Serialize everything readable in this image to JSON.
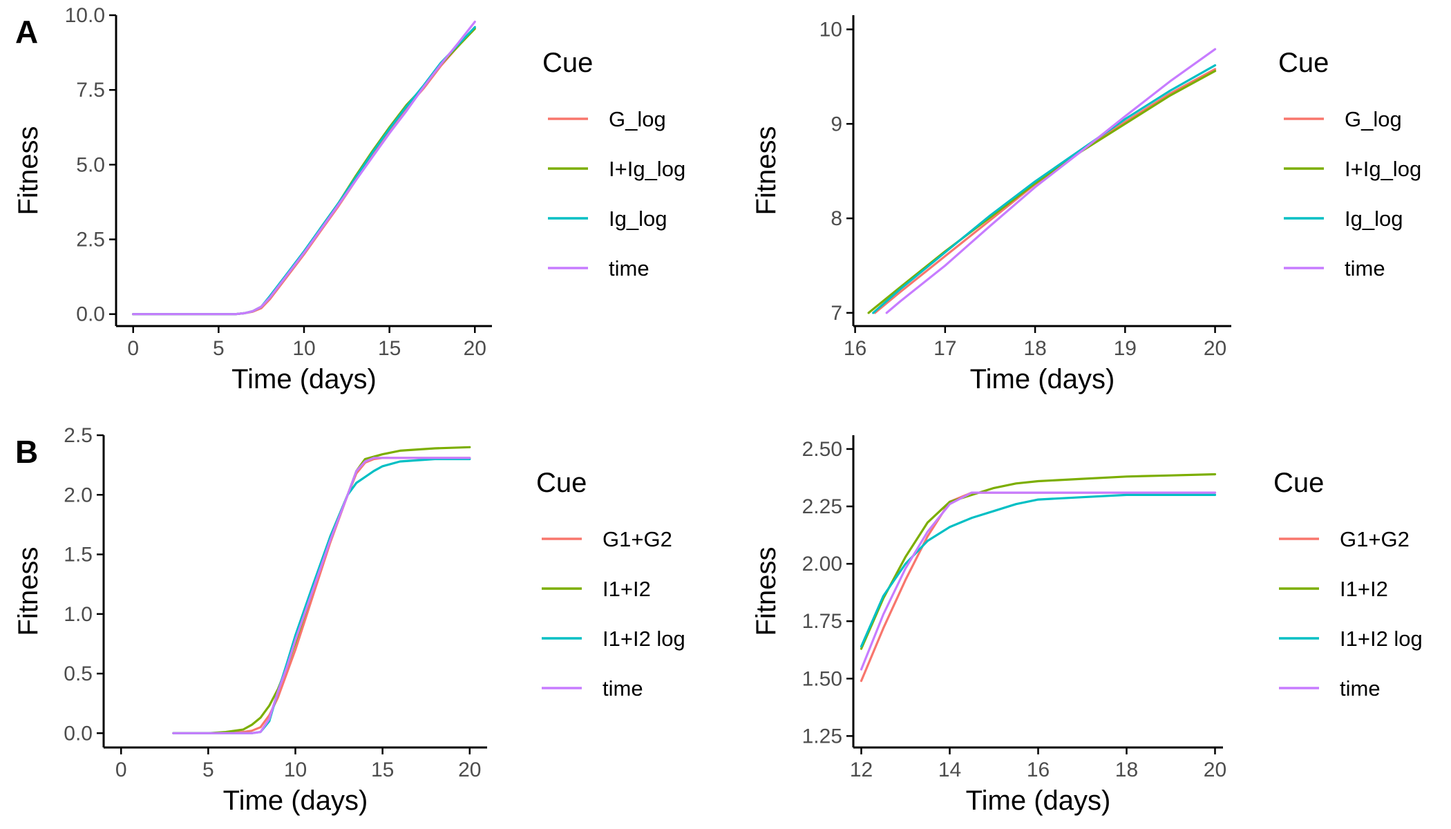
{
  "panel_labels": [
    "A",
    "B"
  ],
  "colors": {
    "G_log": "#F8766D",
    "I+Ig_log": "#7CAE00",
    "Ig_log": "#00BFC4",
    "time": "#C77CFF",
    "G1+G2": "#F8766D",
    "I1+I2": "#7CAE00",
    "I1+I2 log": "#00BFC4"
  },
  "chart_data": [
    {
      "id": "A-left",
      "type": "line",
      "xlabel": "Time (days)",
      "ylabel": "Fitness",
      "xlim": [
        -1,
        21
      ],
      "ylim": [
        -0.4,
        10.0
      ],
      "xticks": [
        0,
        5,
        10,
        15,
        20
      ],
      "xtick_labels": [
        "0",
        "5",
        "10",
        "15",
        "20"
      ],
      "yticks": [
        0,
        2.5,
        5,
        7.5,
        10
      ],
      "ytick_labels": [
        "0.0",
        "2.5",
        "5.0",
        "7.5",
        "10.0"
      ],
      "grid": false,
      "legend": {
        "title": "Cue",
        "position": "right",
        "entries": [
          "G_log",
          "I+Ig_log",
          "Ig_log",
          "time"
        ]
      },
      "series": [
        {
          "name": "G_log",
          "color": "#F8766D",
          "x": [
            0,
            2,
            4,
            6,
            6.5,
            7,
            7.5,
            8,
            9,
            10,
            11,
            12,
            13,
            14,
            15,
            16,
            17,
            18,
            19,
            20
          ],
          "y": [
            0,
            0,
            0,
            0,
            0.03,
            0.08,
            0.2,
            0.5,
            1.25,
            2.0,
            2.8,
            3.6,
            4.45,
            5.3,
            6.1,
            6.9,
            7.55,
            8.3,
            8.95,
            9.6
          ]
        },
        {
          "name": "I+Ig_log",
          "color": "#7CAE00",
          "x": [
            0,
            2,
            4,
            6,
            6.5,
            7,
            7.5,
            8,
            9,
            10,
            11,
            12,
            13,
            14,
            15,
            16,
            17,
            18,
            19,
            20
          ],
          "y": [
            0,
            0,
            0,
            0,
            0.03,
            0.1,
            0.25,
            0.55,
            1.3,
            2.05,
            2.9,
            3.7,
            4.6,
            5.45,
            6.25,
            7.0,
            7.6,
            8.35,
            8.95,
            9.55
          ]
        },
        {
          "name": "Ig_log",
          "color": "#00BFC4",
          "x": [
            0,
            2,
            4,
            6,
            6.5,
            7,
            7.5,
            8,
            9,
            10,
            11,
            12,
            13,
            14,
            15,
            16,
            17,
            18,
            19,
            20
          ],
          "y": [
            0,
            0,
            0,
            0,
            0.03,
            0.1,
            0.25,
            0.6,
            1.35,
            2.1,
            2.9,
            3.7,
            4.55,
            5.4,
            6.2,
            6.95,
            7.65,
            8.4,
            9.0,
            9.6
          ]
        },
        {
          "name": "time",
          "color": "#C77CFF",
          "x": [
            0,
            2,
            4,
            6,
            6.5,
            7,
            7.5,
            8,
            9,
            10,
            11,
            12,
            13,
            14,
            15,
            16,
            17,
            18,
            19,
            20
          ],
          "y": [
            0,
            0,
            0,
            0,
            0.03,
            0.1,
            0.25,
            0.55,
            1.3,
            2.05,
            2.85,
            3.65,
            4.45,
            5.25,
            6.05,
            6.8,
            7.6,
            8.35,
            9.05,
            9.78
          ]
        }
      ]
    },
    {
      "id": "A-right",
      "type": "line",
      "xlabel": "Time (days)",
      "ylabel": "Fitness",
      "xlim": [
        15.98,
        20.18
      ],
      "ylim": [
        6.86,
        10.15
      ],
      "xticks": [
        16,
        17,
        18,
        19,
        20
      ],
      "xtick_labels": [
        "16",
        "17",
        "18",
        "19",
        "20"
      ],
      "yticks": [
        7,
        8,
        9,
        10
      ],
      "ytick_labels": [
        "7",
        "8",
        "9",
        "10"
      ],
      "grid": false,
      "legend": {
        "title": "Cue",
        "position": "right",
        "entries": [
          "G_log",
          "I+Ig_log",
          "Ig_log",
          "time"
        ]
      },
      "series": [
        {
          "name": "G_log",
          "color": "#F8766D",
          "x": [
            16.22,
            16.5,
            17,
            17.5,
            18,
            18.5,
            19,
            19.5,
            20
          ],
          "y": [
            7.0,
            7.22,
            7.6,
            7.98,
            8.36,
            8.7,
            9.02,
            9.32,
            9.58
          ]
        },
        {
          "name": "I+Ig_log",
          "color": "#7CAE00",
          "x": [
            16.15,
            16.5,
            17,
            17.5,
            18,
            18.5,
            19,
            19.5,
            20
          ],
          "y": [
            7.0,
            7.27,
            7.65,
            8.01,
            8.37,
            8.7,
            9.0,
            9.3,
            9.56
          ]
        },
        {
          "name": "Ig_log",
          "color": "#00BFC4",
          "x": [
            16.2,
            16.5,
            17,
            17.5,
            18,
            18.5,
            19,
            19.5,
            20
          ],
          "y": [
            7.0,
            7.25,
            7.64,
            8.03,
            8.39,
            8.72,
            9.05,
            9.35,
            9.62
          ]
        },
        {
          "name": "time",
          "color": "#C77CFF",
          "x": [
            16.35,
            16.5,
            17,
            17.5,
            18,
            18.5,
            19,
            19.5,
            20
          ],
          "y": [
            7.0,
            7.12,
            7.5,
            7.92,
            8.33,
            8.7,
            9.08,
            9.45,
            9.79
          ]
        }
      ]
    },
    {
      "id": "B-left",
      "type": "line",
      "xlabel": "Time (days)",
      "ylabel": "Fitness",
      "xlim": [
        -1,
        21
      ],
      "ylim": [
        -0.12,
        2.5
      ],
      "xticks": [
        0,
        5,
        10,
        15,
        20
      ],
      "xtick_labels": [
        "0",
        "5",
        "10",
        "15",
        "20"
      ],
      "yticks": [
        0,
        0.5,
        1.0,
        1.5,
        2.0,
        2.5
      ],
      "ytick_labels": [
        "0.0",
        "0.5",
        "1.0",
        "1.5",
        "2.0",
        "2.5"
      ],
      "grid": false,
      "legend": {
        "title": "Cue",
        "position": "right",
        "entries": [
          "G1+G2",
          "I1+I2",
          "I1+I2 log",
          "time"
        ]
      },
      "series": [
        {
          "name": "G1+G2",
          "color": "#F8766D",
          "x": [
            3,
            5,
            6,
            7,
            7.5,
            8,
            8.5,
            9,
            9.5,
            10,
            11,
            12,
            13,
            13.5,
            14,
            14.5,
            15,
            16,
            18,
            20
          ],
          "y": [
            0,
            0,
            0,
            0.01,
            0.02,
            0.05,
            0.15,
            0.3,
            0.5,
            0.7,
            1.15,
            1.6,
            2.0,
            2.18,
            2.27,
            2.3,
            2.31,
            2.31,
            2.31,
            2.31
          ]
        },
        {
          "name": "I1+I2",
          "color": "#7CAE00",
          "x": [
            3,
            5,
            6,
            7,
            7.5,
            8,
            8.5,
            9,
            9.5,
            10,
            11,
            12,
            13,
            13.5,
            14,
            14.5,
            15,
            16,
            18,
            20
          ],
          "y": [
            0,
            0,
            0.01,
            0.03,
            0.07,
            0.13,
            0.23,
            0.37,
            0.55,
            0.76,
            1.2,
            1.65,
            2.0,
            2.2,
            2.3,
            2.32,
            2.34,
            2.37,
            2.39,
            2.4
          ]
        },
        {
          "name": "I1+I2 log",
          "color": "#00BFC4",
          "x": [
            3,
            5,
            6,
            7,
            7.5,
            8,
            8.5,
            9,
            9.5,
            10,
            11,
            12,
            13,
            13.5,
            14,
            14.5,
            15,
            16,
            18,
            20
          ],
          "y": [
            0,
            0,
            0,
            0,
            0,
            0.01,
            0.1,
            0.35,
            0.58,
            0.82,
            1.24,
            1.65,
            2.0,
            2.1,
            2.15,
            2.2,
            2.24,
            2.28,
            2.3,
            2.3
          ]
        },
        {
          "name": "time",
          "color": "#C77CFF",
          "x": [
            3,
            5,
            6,
            7,
            7.5,
            8,
            8.5,
            9,
            9.5,
            10,
            11,
            12,
            13,
            13.5,
            14,
            14.5,
            15,
            16,
            18,
            20
          ],
          "y": [
            0,
            0,
            0,
            0,
            0,
            0.01,
            0.12,
            0.35,
            0.55,
            0.78,
            1.2,
            1.62,
            2.0,
            2.2,
            2.28,
            2.31,
            2.31,
            2.31,
            2.31,
            2.31
          ]
        }
      ]
    },
    {
      "id": "B-right",
      "type": "line",
      "xlabel": "Time (days)",
      "ylabel": "Fitness",
      "xlim": [
        11.82,
        20.18
      ],
      "ylim": [
        1.2,
        2.56
      ],
      "xticks": [
        12,
        14,
        16,
        18,
        20
      ],
      "xtick_labels": [
        "12",
        "14",
        "16",
        "18",
        "20"
      ],
      "yticks": [
        1.25,
        1.5,
        1.75,
        2.0,
        2.25,
        2.5
      ],
      "ytick_labels": [
        "1.25",
        "1.50",
        "1.75",
        "2.00",
        "2.25",
        "2.50"
      ],
      "grid": false,
      "legend": {
        "title": "Cue",
        "position": "right",
        "entries": [
          "G1+G2",
          "I1+I2",
          "I1+I2 log",
          "time"
        ]
      },
      "series": [
        {
          "name": "G1+G2",
          "color": "#F8766D",
          "x": [
            12,
            12.5,
            13,
            13.5,
            14,
            14.5,
            15,
            16,
            17,
            18,
            20
          ],
          "y": [
            1.49,
            1.72,
            1.93,
            2.12,
            2.27,
            2.31,
            2.31,
            2.31,
            2.31,
            2.31,
            2.31
          ]
        },
        {
          "name": "I1+I2",
          "color": "#7CAE00",
          "x": [
            12,
            12.5,
            13,
            13.5,
            14,
            14.5,
            15,
            15.5,
            16,
            17,
            18,
            19,
            20
          ],
          "y": [
            1.63,
            1.85,
            2.03,
            2.18,
            2.27,
            2.3,
            2.33,
            2.35,
            2.36,
            2.37,
            2.38,
            2.385,
            2.39
          ]
        },
        {
          "name": "I1+I2 log",
          "color": "#00BFC4",
          "x": [
            12,
            12.5,
            13,
            13.5,
            14,
            14.5,
            15,
            15.5,
            16,
            17,
            18,
            20
          ],
          "y": [
            1.64,
            1.86,
            2.0,
            2.1,
            2.16,
            2.2,
            2.23,
            2.26,
            2.28,
            2.29,
            2.3,
            2.3
          ]
        },
        {
          "name": "time",
          "color": "#C77CFF",
          "x": [
            12,
            12.5,
            13,
            13.5,
            14,
            14.5,
            15,
            16,
            18,
            20
          ],
          "y": [
            1.54,
            1.78,
            1.98,
            2.14,
            2.26,
            2.31,
            2.31,
            2.31,
            2.31,
            2.31
          ]
        }
      ]
    }
  ]
}
